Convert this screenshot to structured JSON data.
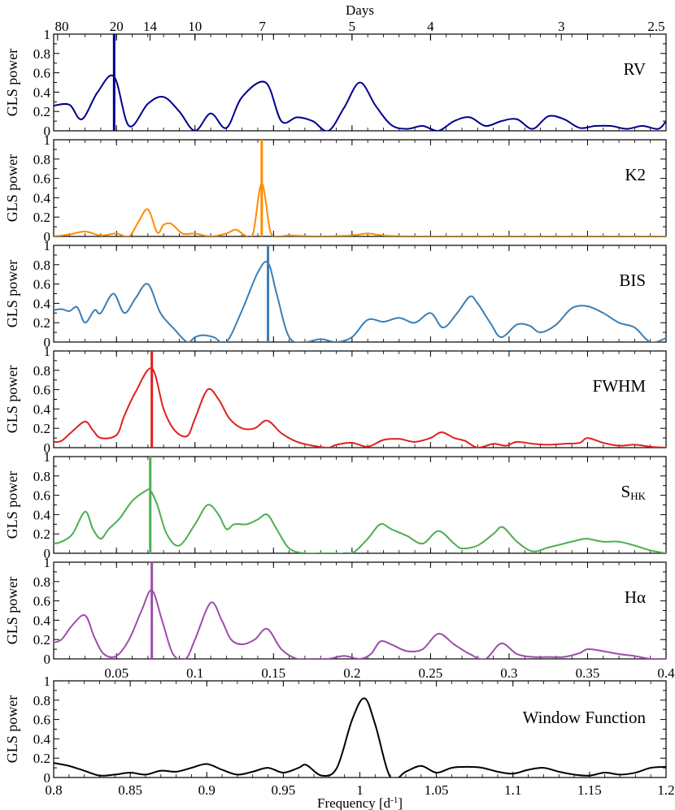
{
  "figure": {
    "top_axis_label": "Days",
    "top_ticks": [
      {
        "label": "80",
        "freq": 0.0125
      },
      {
        "label": "20",
        "freq": 0.05
      },
      {
        "label": "14",
        "freq": 0.0714
      },
      {
        "label": "10",
        "freq": 0.1
      },
      {
        "label": "7",
        "freq": 0.1429
      },
      {
        "label": "5",
        "freq": 0.2
      },
      {
        "label": "4",
        "freq": 0.25
      },
      {
        "label": "3",
        "freq": 0.3333
      },
      {
        "label": "2.5",
        "freq": 0.4
      }
    ],
    "bottom_xlabel": "Frequency [d",
    "bottom_xlabel_sup": "-1",
    "bottom_xlabel_end": "]"
  },
  "chart_data": [
    {
      "type": "line",
      "id": "rv",
      "label": "RV",
      "label_sub": "",
      "color": "#00008b",
      "ylabel": "GLS power",
      "ylim": [
        0,
        1
      ],
      "xlim": [
        0.01,
        0.4
      ],
      "peak": 0.0485,
      "x": [
        0.01,
        0.02,
        0.028,
        0.038,
        0.0485,
        0.058,
        0.07,
        0.08,
        0.09,
        0.1,
        0.11,
        0.12,
        0.13,
        0.145,
        0.155,
        0.165,
        0.175,
        0.185,
        0.195,
        0.205,
        0.215,
        0.225,
        0.235,
        0.245,
        0.255,
        0.265,
        0.275,
        0.285,
        0.295,
        0.305,
        0.315,
        0.325,
        0.335,
        0.345,
        0.355,
        0.365,
        0.375,
        0.385,
        0.395,
        0.4
      ],
      "y": [
        0.26,
        0.27,
        0.12,
        0.4,
        0.56,
        0.05,
        0.28,
        0.35,
        0.2,
        0.0,
        0.18,
        0.03,
        0.35,
        0.5,
        0.1,
        0.14,
        0.1,
        0.0,
        0.24,
        0.5,
        0.26,
        0.06,
        0.02,
        0.05,
        0.0,
        0.1,
        0.14,
        0.05,
        0.1,
        0.12,
        0.02,
        0.15,
        0.12,
        0.03,
        0.05,
        0.05,
        0.02,
        0.05,
        0.02,
        0.1
      ]
    },
    {
      "type": "line",
      "id": "k2",
      "label": "K2",
      "label_sub": "",
      "color": "#ff8c00",
      "ylabel": "GLS power",
      "ylim": [
        0,
        1
      ],
      "xlim": [
        0.01,
        0.4
      ],
      "peak": 0.1425,
      "x": [
        0.01,
        0.02,
        0.03,
        0.04,
        0.05,
        0.058,
        0.064,
        0.07,
        0.076,
        0.08,
        0.085,
        0.092,
        0.1,
        0.11,
        0.12,
        0.126,
        0.132,
        0.137,
        0.1425,
        0.148,
        0.153,
        0.16,
        0.18,
        0.2,
        0.21,
        0.22,
        0.24,
        0.3,
        0.4
      ],
      "y": [
        0.0,
        0.02,
        0.05,
        0.01,
        0.03,
        0.0,
        0.15,
        0.28,
        0.04,
        0.12,
        0.13,
        0.03,
        0.03,
        0.0,
        0.03,
        0.07,
        0.01,
        0.03,
        0.55,
        0.05,
        0.0,
        0.01,
        0.0,
        0.01,
        0.03,
        0.01,
        0.0,
        0.0,
        0.0
      ]
    },
    {
      "type": "line",
      "id": "bis",
      "label": "BIS",
      "label_sub": "",
      "color": "#3b7fb5",
      "ylabel": "GLS power",
      "ylim": [
        0,
        1
      ],
      "xlim": [
        0.01,
        0.4
      ],
      "peak": 0.1465,
      "x": [
        0.01,
        0.015,
        0.02,
        0.025,
        0.03,
        0.036,
        0.04,
        0.048,
        0.055,
        0.062,
        0.07,
        0.078,
        0.087,
        0.095,
        0.1,
        0.105,
        0.112,
        0.12,
        0.13,
        0.14,
        0.1465,
        0.152,
        0.16,
        0.17,
        0.18,
        0.19,
        0.2,
        0.21,
        0.22,
        0.23,
        0.24,
        0.25,
        0.258,
        0.267,
        0.275,
        0.28,
        0.288,
        0.295,
        0.305,
        0.313,
        0.32,
        0.33,
        0.34,
        0.35,
        0.36,
        0.37,
        0.38,
        0.39,
        0.4
      ],
      "y": [
        0.33,
        0.34,
        0.32,
        0.36,
        0.2,
        0.33,
        0.3,
        0.5,
        0.3,
        0.45,
        0.6,
        0.3,
        0.13,
        0.0,
        0.05,
        0.07,
        0.05,
        0.0,
        0.33,
        0.72,
        0.82,
        0.5,
        0.05,
        0.0,
        0.03,
        0.0,
        0.05,
        0.23,
        0.21,
        0.25,
        0.2,
        0.3,
        0.15,
        0.3,
        0.47,
        0.4,
        0.2,
        0.05,
        0.18,
        0.17,
        0.1,
        0.18,
        0.35,
        0.37,
        0.3,
        0.2,
        0.15,
        0.0,
        0.04
      ]
    },
    {
      "type": "line",
      "id": "fwhm",
      "label": "FWHM",
      "label_sub": "",
      "color": "#e02020",
      "ylabel": "GLS power",
      "ylim": [
        0,
        1
      ],
      "xlim": [
        0.01,
        0.4
      ],
      "peak": 0.0725,
      "x": [
        0.01,
        0.015,
        0.022,
        0.03,
        0.035,
        0.04,
        0.05,
        0.055,
        0.062,
        0.0725,
        0.08,
        0.087,
        0.095,
        0.1,
        0.108,
        0.115,
        0.122,
        0.13,
        0.138,
        0.146,
        0.155,
        0.165,
        0.175,
        0.185,
        0.19,
        0.2,
        0.21,
        0.22,
        0.23,
        0.24,
        0.25,
        0.257,
        0.265,
        0.272,
        0.28,
        0.29,
        0.298,
        0.305,
        0.315,
        0.325,
        0.335,
        0.345,
        0.35,
        0.36,
        0.37,
        0.38,
        0.39,
        0.4
      ],
      "y": [
        0.06,
        0.07,
        0.17,
        0.27,
        0.18,
        0.1,
        0.13,
        0.33,
        0.57,
        0.82,
        0.4,
        0.18,
        0.12,
        0.3,
        0.6,
        0.5,
        0.3,
        0.2,
        0.2,
        0.28,
        0.15,
        0.06,
        0.02,
        0.0,
        0.03,
        0.05,
        0.01,
        0.08,
        0.09,
        0.06,
        0.1,
        0.16,
        0.1,
        0.07,
        0.0,
        0.04,
        0.02,
        0.06,
        0.04,
        0.03,
        0.04,
        0.05,
        0.1,
        0.05,
        0.02,
        0.03,
        0.01,
        0.0
      ]
    },
    {
      "type": "line",
      "id": "shk",
      "label": "S",
      "label_sub": "HK",
      "color": "#4caf50",
      "ylabel": "GLS power",
      "ylim": [
        0,
        1
      ],
      "xlim": [
        0.01,
        0.4
      ],
      "peak": 0.0715,
      "x": [
        0.01,
        0.015,
        0.022,
        0.03,
        0.035,
        0.04,
        0.045,
        0.052,
        0.06,
        0.068,
        0.0715,
        0.076,
        0.082,
        0.09,
        0.1,
        0.108,
        0.115,
        0.12,
        0.125,
        0.133,
        0.14,
        0.146,
        0.152,
        0.16,
        0.17,
        0.18,
        0.19,
        0.2,
        0.21,
        0.218,
        0.225,
        0.235,
        0.245,
        0.255,
        0.265,
        0.27,
        0.28,
        0.29,
        0.296,
        0.305,
        0.315,
        0.325,
        0.335,
        0.345,
        0.35,
        0.36,
        0.37,
        0.38,
        0.39,
        0.4
      ],
      "y": [
        0.1,
        0.12,
        0.2,
        0.43,
        0.25,
        0.15,
        0.25,
        0.36,
        0.54,
        0.64,
        0.65,
        0.5,
        0.2,
        0.08,
        0.3,
        0.5,
        0.4,
        0.25,
        0.3,
        0.3,
        0.35,
        0.4,
        0.25,
        0.05,
        0.0,
        0.0,
        0.0,
        0.0,
        0.15,
        0.3,
        0.25,
        0.18,
        0.1,
        0.23,
        0.1,
        0.05,
        0.08,
        0.2,
        0.27,
        0.12,
        0.02,
        0.06,
        0.1,
        0.14,
        0.15,
        0.12,
        0.12,
        0.08,
        0.03,
        0.0
      ]
    },
    {
      "type": "line",
      "id": "halpha",
      "label": "Hα",
      "label_sub": "",
      "color": "#9b4fa8",
      "ylabel": "GLS power",
      "ylim": [
        0,
        1
      ],
      "xlim": [
        0.01,
        0.4
      ],
      "peak": 0.0725,
      "x": [
        0.01,
        0.015,
        0.022,
        0.03,
        0.036,
        0.042,
        0.05,
        0.058,
        0.066,
        0.0725,
        0.079,
        0.086,
        0.094,
        0.1,
        0.11,
        0.117,
        0.123,
        0.13,
        0.138,
        0.146,
        0.155,
        0.165,
        0.175,
        0.185,
        0.195,
        0.205,
        0.212,
        0.218,
        0.225,
        0.235,
        0.245,
        0.255,
        0.265,
        0.275,
        0.285,
        0.295,
        0.305,
        0.315,
        0.325,
        0.335,
        0.345,
        0.35,
        0.36,
        0.37,
        0.38,
        0.39,
        0.4
      ],
      "y": [
        0.17,
        0.2,
        0.35,
        0.45,
        0.22,
        0.05,
        0.03,
        0.2,
        0.5,
        0.71,
        0.4,
        0.05,
        0.0,
        0.2,
        0.58,
        0.4,
        0.2,
        0.15,
        0.2,
        0.31,
        0.1,
        0.0,
        0.0,
        0.0,
        0.03,
        0.0,
        0.05,
        0.18,
        0.15,
        0.08,
        0.1,
        0.26,
        0.15,
        0.05,
        0.0,
        0.16,
        0.05,
        0.02,
        0.02,
        0.02,
        0.06,
        0.1,
        0.08,
        0.05,
        0.03,
        0.0,
        0.0
      ]
    },
    {
      "type": "line",
      "id": "window",
      "label": "Window Function",
      "label_sub": "",
      "color": "#000000",
      "ylabel": "GLS power",
      "ylim": [
        0,
        1
      ],
      "xlim": [
        0.8,
        1.2
      ],
      "peak": null,
      "x": [
        0.8,
        0.81,
        0.82,
        0.83,
        0.84,
        0.85,
        0.86,
        0.87,
        0.88,
        0.89,
        0.9,
        0.91,
        0.92,
        0.93,
        0.94,
        0.95,
        0.96,
        0.965,
        0.975,
        0.985,
        0.995,
        1.003,
        1.01,
        1.02,
        1.03,
        1.04,
        1.05,
        1.06,
        1.07,
        1.08,
        1.09,
        1.1,
        1.11,
        1.12,
        1.13,
        1.14,
        1.15,
        1.16,
        1.17,
        1.18,
        1.19,
        1.2
      ],
      "y": [
        0.15,
        0.12,
        0.07,
        0.02,
        0.03,
        0.05,
        0.03,
        0.07,
        0.06,
        0.1,
        0.14,
        0.08,
        0.03,
        0.06,
        0.1,
        0.05,
        0.1,
        0.13,
        0.02,
        0.1,
        0.6,
        0.82,
        0.55,
        0.0,
        0.06,
        0.12,
        0.05,
        0.1,
        0.11,
        0.1,
        0.06,
        0.04,
        0.08,
        0.1,
        0.06,
        0.03,
        0.02,
        0.05,
        0.03,
        0.05,
        0.1,
        0.11
      ]
    }
  ]
}
